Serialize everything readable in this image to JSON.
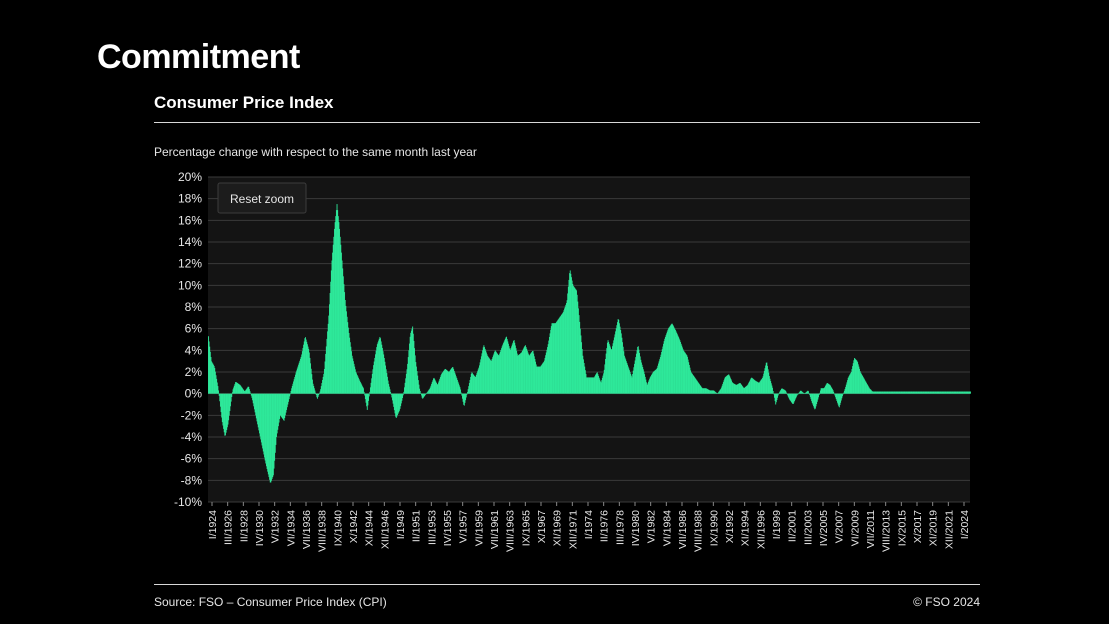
{
  "slide": {
    "title": "Commitment"
  },
  "chart_heading": "Consumer Price Index",
  "footer": {
    "source": "Source: FSO – Consumer Price Index (CPI)",
    "copyright": "© FSO 2024"
  },
  "reset_zoom_label": "Reset zoom",
  "colors": {
    "bar": "#2ee89a",
    "background": "#000000",
    "plot_bg": "#141414",
    "grid": "#3a3a3a"
  },
  "chart_data": {
    "type": "area",
    "subtitle": "Percentage change with respect to the same month last year",
    "xlabel": "",
    "ylabel": "",
    "ylim": [
      -10,
      20
    ],
    "yticks": [
      20,
      18,
      16,
      14,
      12,
      10,
      8,
      6,
      4,
      2,
      0,
      -2,
      -4,
      -6,
      -8,
      -10
    ],
    "ytick_labels": [
      "20%",
      "18%",
      "16%",
      "14%",
      "12%",
      "10%",
      "8%",
      "6%",
      "4%",
      "2%",
      "0%",
      "-2%",
      "-4%",
      "-6%",
      "-8%",
      "-10%"
    ],
    "x_range": [
      1924.0,
      2024.75
    ],
    "xtick_labels": [
      "I/1924",
      "III/1926",
      "II/1928",
      "IV/1930",
      "V/1932",
      "VI/1934",
      "VII/1936",
      "VIII/1938",
      "IX/1940",
      "X/1942",
      "XI/1944",
      "XII/1946",
      "I/1949",
      "II/1951",
      "III/1953",
      "IV/1955",
      "V/1957",
      "VI/1959",
      "VII/1961",
      "VIII/1963",
      "IX/1965",
      "X/1967",
      "XI/1969",
      "XII/1971",
      "I/1974",
      "II/1976",
      "III/1978",
      "IV/1980",
      "V/1982",
      "VI/1984",
      "VII/1986",
      "VIII/1988",
      "IX/1990",
      "X/1992",
      "XI/1994",
      "XII/1996",
      "I/1999",
      "II/2001",
      "III/2003",
      "IV/2005",
      "V/2007",
      "VI/2009",
      "VII/2011",
      "VIII/2013",
      "IX/2015",
      "X/2017",
      "XI/2019",
      "XII/2021",
      "I/2024"
    ],
    "series": [
      {
        "values_description": "yearly-ish anchor points [year, %]",
        "points": [
          [
            1924.0,
            5.3
          ],
          [
            1924.4,
            3.0
          ],
          [
            1924.8,
            2.5
          ],
          [
            1925.3,
            0.5
          ],
          [
            1925.8,
            -2.5
          ],
          [
            1926.2,
            -4.0
          ],
          [
            1926.6,
            -2.8
          ],
          [
            1927.2,
            0.3
          ],
          [
            1927.6,
            1.1
          ],
          [
            1928.2,
            0.8
          ],
          [
            1928.8,
            0.2
          ],
          [
            1929.3,
            0.7
          ],
          [
            1929.8,
            -0.5
          ],
          [
            1930.4,
            -2.5
          ],
          [
            1931.0,
            -4.5
          ],
          [
            1931.6,
            -6.5
          ],
          [
            1932.2,
            -8.3
          ],
          [
            1932.6,
            -7.5
          ],
          [
            1933.0,
            -4.0
          ],
          [
            1933.5,
            -2.0
          ],
          [
            1934.0,
            -2.5
          ],
          [
            1934.5,
            -1.0
          ],
          [
            1935.0,
            0.5
          ],
          [
            1935.6,
            2.0
          ],
          [
            1936.3,
            3.5
          ],
          [
            1936.8,
            5.3
          ],
          [
            1937.3,
            4.0
          ],
          [
            1937.8,
            1.0
          ],
          [
            1938.4,
            -0.5
          ],
          [
            1938.8,
            0.3
          ],
          [
            1939.3,
            2.0
          ],
          [
            1939.9,
            7.0
          ],
          [
            1940.3,
            12.0
          ],
          [
            1940.7,
            15.5
          ],
          [
            1941.0,
            17.5
          ],
          [
            1941.3,
            15.5
          ],
          [
            1941.7,
            12.0
          ],
          [
            1942.1,
            8.5
          ],
          [
            1942.6,
            5.5
          ],
          [
            1943.0,
            3.5
          ],
          [
            1943.5,
            2.0
          ],
          [
            1944.0,
            1.2
          ],
          [
            1944.5,
            0.5
          ],
          [
            1945.0,
            -1.5
          ],
          [
            1945.4,
            0.5
          ],
          [
            1945.8,
            2.5
          ],
          [
            1946.3,
            4.5
          ],
          [
            1946.7,
            5.3
          ],
          [
            1947.2,
            3.5
          ],
          [
            1947.8,
            1.0
          ],
          [
            1948.3,
            -0.5
          ],
          [
            1948.8,
            -2.3
          ],
          [
            1949.3,
            -1.5
          ],
          [
            1949.8,
            0.0
          ],
          [
            1950.3,
            2.5
          ],
          [
            1950.7,
            5.5
          ],
          [
            1951.0,
            6.2
          ],
          [
            1951.4,
            3.0
          ],
          [
            1951.9,
            0.5
          ],
          [
            1952.3,
            -0.5
          ],
          [
            1952.8,
            0.0
          ],
          [
            1953.3,
            0.5
          ],
          [
            1953.8,
            1.5
          ],
          [
            1954.3,
            0.8
          ],
          [
            1954.8,
            1.8
          ],
          [
            1955.3,
            2.3
          ],
          [
            1955.8,
            2.0
          ],
          [
            1956.3,
            2.5
          ],
          [
            1956.8,
            1.5
          ],
          [
            1957.3,
            0.5
          ],
          [
            1957.8,
            -1.2
          ],
          [
            1958.3,
            0.3
          ],
          [
            1958.8,
            2.0
          ],
          [
            1959.3,
            1.5
          ],
          [
            1959.8,
            2.5
          ],
          [
            1960.4,
            4.5
          ],
          [
            1960.9,
            3.5
          ],
          [
            1961.4,
            3.0
          ],
          [
            1961.9,
            4.0
          ],
          [
            1962.4,
            3.5
          ],
          [
            1962.9,
            4.5
          ],
          [
            1963.4,
            5.3
          ],
          [
            1963.9,
            4.0
          ],
          [
            1964.4,
            5.0
          ],
          [
            1964.9,
            3.5
          ],
          [
            1965.4,
            3.8
          ],
          [
            1965.9,
            4.5
          ],
          [
            1966.4,
            3.5
          ],
          [
            1966.9,
            4.0
          ],
          [
            1967.4,
            2.5
          ],
          [
            1967.9,
            2.5
          ],
          [
            1968.4,
            3.0
          ],
          [
            1968.9,
            4.5
          ],
          [
            1969.4,
            6.5
          ],
          [
            1969.9,
            6.5
          ],
          [
            1970.4,
            7.0
          ],
          [
            1970.9,
            7.5
          ],
          [
            1971.4,
            8.5
          ],
          [
            1971.8,
            11.5
          ],
          [
            1972.2,
            10.0
          ],
          [
            1972.7,
            9.5
          ],
          [
            1973.1,
            6.5
          ],
          [
            1973.5,
            3.5
          ],
          [
            1974.0,
            1.5
          ],
          [
            1974.5,
            1.5
          ],
          [
            1975.0,
            1.5
          ],
          [
            1975.4,
            2.0
          ],
          [
            1975.9,
            1.0
          ],
          [
            1976.3,
            2.0
          ],
          [
            1976.8,
            5.0
          ],
          [
            1977.3,
            4.0
          ],
          [
            1977.7,
            5.3
          ],
          [
            1978.2,
            7.0
          ],
          [
            1978.6,
            5.5
          ],
          [
            1979.0,
            3.5
          ],
          [
            1979.5,
            2.5
          ],
          [
            1980.0,
            1.5
          ],
          [
            1980.4,
            3.0
          ],
          [
            1980.8,
            4.5
          ],
          [
            1981.2,
            3.0
          ],
          [
            1981.6,
            2.0
          ],
          [
            1982.0,
            0.8
          ],
          [
            1982.4,
            1.5
          ],
          [
            1982.8,
            2.0
          ],
          [
            1983.3,
            2.3
          ],
          [
            1983.8,
            3.5
          ],
          [
            1984.3,
            5.0
          ],
          [
            1984.8,
            6.0
          ],
          [
            1985.3,
            6.5
          ],
          [
            1985.8,
            5.8
          ],
          [
            1986.3,
            5.0
          ],
          [
            1986.8,
            4.0
          ],
          [
            1987.3,
            3.5
          ],
          [
            1987.8,
            2.0
          ],
          [
            1988.3,
            1.5
          ],
          [
            1988.8,
            1.0
          ],
          [
            1989.3,
            0.5
          ],
          [
            1989.8,
            0.5
          ],
          [
            1990.3,
            0.3
          ],
          [
            1990.8,
            0.3
          ],
          [
            1991.3,
            0.0
          ],
          [
            1991.8,
            0.5
          ],
          [
            1992.3,
            1.5
          ],
          [
            1992.8,
            1.8
          ],
          [
            1993.3,
            1.0
          ],
          [
            1993.8,
            0.8
          ],
          [
            1994.3,
            1.0
          ],
          [
            1994.8,
            0.5
          ],
          [
            1995.3,
            0.8
          ],
          [
            1995.8,
            1.5
          ],
          [
            1996.3,
            1.2
          ],
          [
            1996.8,
            1.0
          ],
          [
            1997.3,
            1.5
          ],
          [
            1997.8,
            3.0
          ],
          [
            1998.2,
            1.5
          ],
          [
            1998.6,
            0.5
          ],
          [
            1999.0,
            -1.0
          ],
          [
            1999.4,
            0.0
          ],
          [
            1999.8,
            0.5
          ],
          [
            2000.3,
            0.3
          ],
          [
            2000.8,
            -0.5
          ],
          [
            2001.3,
            -1.0
          ],
          [
            2001.8,
            -0.2
          ],
          [
            2002.3,
            0.3
          ],
          [
            2002.8,
            0.0
          ],
          [
            2003.3,
            0.3
          ],
          [
            2003.8,
            -0.8
          ],
          [
            2004.2,
            -1.5
          ],
          [
            2004.6,
            -0.5
          ],
          [
            2005.0,
            0.5
          ],
          [
            2005.4,
            0.5
          ],
          [
            2005.8,
            1.0
          ],
          [
            2006.2,
            0.8
          ],
          [
            2006.6,
            0.3
          ],
          [
            2007.0,
            -0.5
          ],
          [
            2007.4,
            -1.3
          ],
          [
            2007.8,
            -0.3
          ],
          [
            2008.2,
            0.5
          ],
          [
            2008.6,
            1.5
          ],
          [
            2009.0,
            2.0
          ],
          [
            2009.4,
            3.3
          ],
          [
            2009.8,
            3.0
          ],
          [
            2010.2,
            2.0
          ],
          [
            2010.6,
            1.5
          ],
          [
            2011.0,
            1.0
          ],
          [
            2011.4,
            0.5
          ],
          [
            2011.8,
            0.2
          ]
        ]
      }
    ]
  }
}
